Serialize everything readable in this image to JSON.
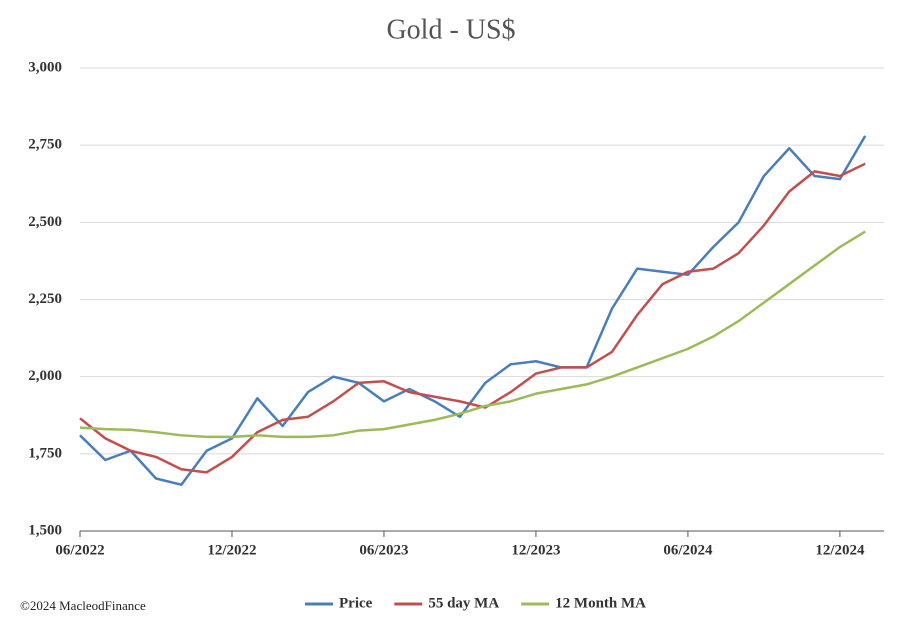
{
  "chart_data": {
    "type": "line",
    "title": "Gold - US$",
    "x": [
      "06/2022",
      "07/2022",
      "08/2022",
      "09/2022",
      "10/2022",
      "11/2022",
      "12/2022",
      "01/2023",
      "02/2023",
      "03/2023",
      "04/2023",
      "05/2023",
      "06/2023",
      "07/2023",
      "08/2023",
      "09/2023",
      "10/2023",
      "11/2023",
      "12/2023",
      "01/2024",
      "02/2024",
      "03/2024",
      "04/2024",
      "05/2024",
      "06/2024",
      "07/2024",
      "08/2024",
      "09/2024",
      "10/2024",
      "11/2024",
      "12/2024",
      "01/2025"
    ],
    "series": [
      {
        "name": "Price",
        "color": "#4a7ebb",
        "values": [
          1810,
          1730,
          1760,
          1670,
          1650,
          1760,
          1800,
          1930,
          1840,
          1950,
          2000,
          1980,
          1920,
          1960,
          1920,
          1870,
          1980,
          2040,
          2050,
          2030,
          2030,
          2220,
          2350,
          2340,
          2330,
          2420,
          2500,
          2650,
          2740,
          2650,
          2640,
          2780
        ]
      },
      {
        "name": "55 day MA",
        "color": "#c0504d",
        "values": [
          1865,
          1800,
          1760,
          1740,
          1700,
          1690,
          1740,
          1820,
          1860,
          1870,
          1920,
          1980,
          1985,
          1950,
          1935,
          1920,
          1900,
          1950,
          2010,
          2030,
          2030,
          2080,
          2200,
          2300,
          2340,
          2350,
          2400,
          2490,
          2600,
          2665,
          2650,
          2690
        ]
      },
      {
        "name": "12 Month MA",
        "color": "#9bbb59",
        "values": [
          1835,
          1830,
          1828,
          1820,
          1810,
          1805,
          1805,
          1810,
          1805,
          1805,
          1810,
          1825,
          1830,
          1845,
          1860,
          1880,
          1905,
          1920,
          1945,
          1960,
          1975,
          2000,
          2030,
          2060,
          2090,
          2130,
          2180,
          2240,
          2300,
          2360,
          2420,
          2470
        ]
      }
    ],
    "xticks": [
      "06/2022",
      "12/2022",
      "06/2023",
      "12/2023",
      "06/2024",
      "12/2024"
    ],
    "ylim": [
      1500,
      3000
    ],
    "yticks": [
      {
        "value": 1500,
        "label": "1,500"
      },
      {
        "value": 1750,
        "label": "1,750"
      },
      {
        "value": 2000,
        "label": "2,000"
      },
      {
        "value": 2250,
        "label": "2,250"
      },
      {
        "value": 2500,
        "label": "2,500"
      },
      {
        "value": 2750,
        "label": "2,750"
      },
      {
        "value": 3000,
        "label": "3,000"
      }
    ],
    "grid": true,
    "legend": "bottom",
    "source": "©2024 MacleodFinance"
  }
}
